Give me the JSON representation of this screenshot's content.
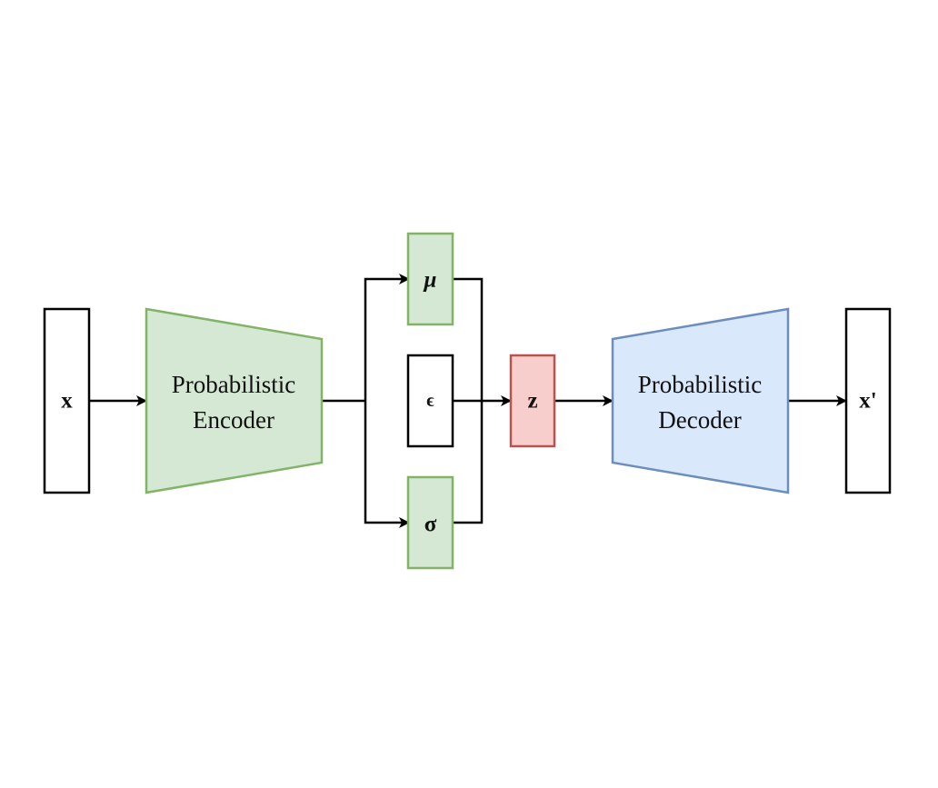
{
  "diagram": {
    "nodes": {
      "input": {
        "label": "x",
        "fill": "#ffffff",
        "stroke": "#000000"
      },
      "encoder": {
        "line1": "Probabilistic",
        "line2": "Encoder",
        "fill": "#d5e8d4",
        "stroke": "#82b366"
      },
      "mu": {
        "label": "μ",
        "fill": "#d5e8d4",
        "stroke": "#82b366"
      },
      "epsilon": {
        "label": "ϵ",
        "fill": "#ffffff",
        "stroke": "#000000"
      },
      "sigma": {
        "label": "σ",
        "fill": "#d5e8d4",
        "stroke": "#82b366"
      },
      "latent": {
        "label": "z",
        "fill": "#f8cecc",
        "stroke": "#b85450"
      },
      "decoder": {
        "line1": "Probabilistic",
        "line2": "Decoder",
        "fill": "#dae8fc",
        "stroke": "#6c8ebf"
      },
      "output": {
        "label": "x'",
        "fill": "#ffffff",
        "stroke": "#000000"
      }
    },
    "edges": [
      {
        "from": "input",
        "to": "encoder"
      },
      {
        "from": "encoder",
        "to": "mu"
      },
      {
        "from": "encoder",
        "to": "sigma"
      },
      {
        "from": "mu",
        "to": "latent"
      },
      {
        "from": "epsilon",
        "to": "latent"
      },
      {
        "from": "sigma",
        "to": "latent"
      },
      {
        "from": "latent",
        "to": "decoder"
      },
      {
        "from": "decoder",
        "to": "output"
      }
    ]
  }
}
